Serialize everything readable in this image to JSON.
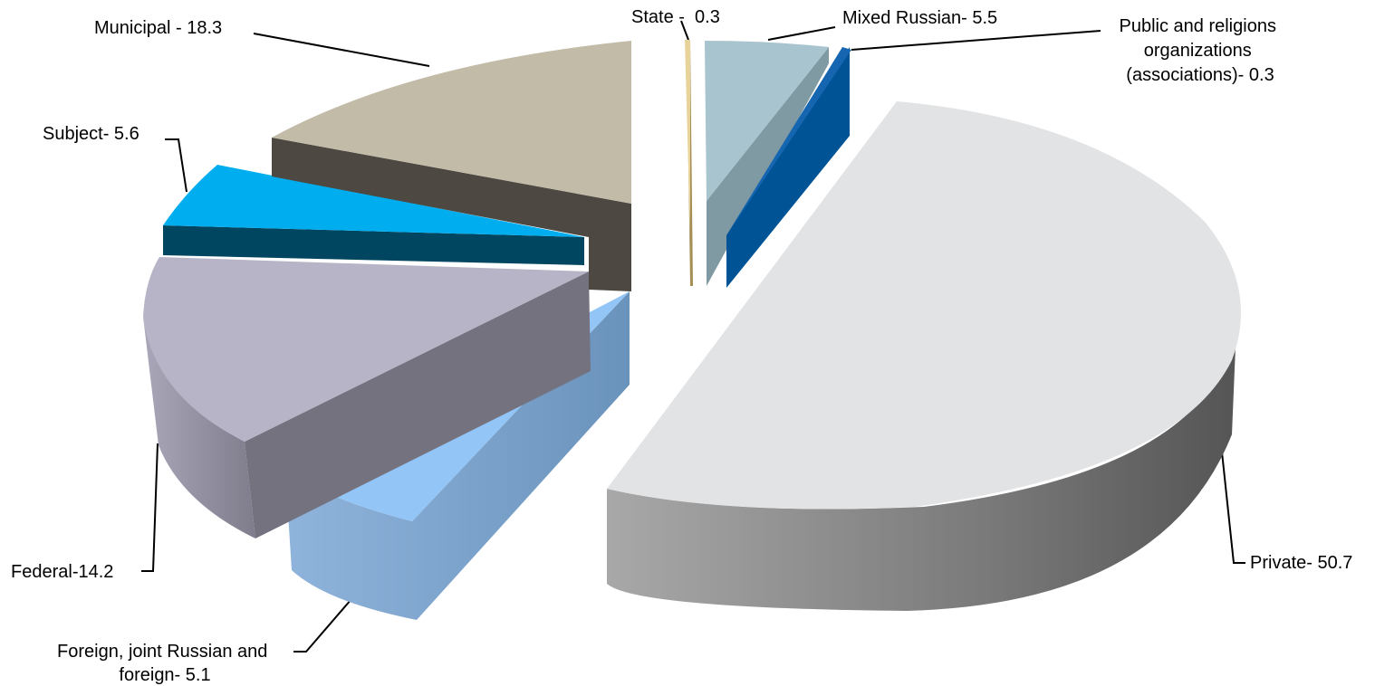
{
  "chart_data": {
    "type": "pie",
    "three_d": true,
    "exploded": true,
    "legend": "none",
    "unit": "",
    "slices": [
      {
        "label": "Private",
        "value": 50.7,
        "text": "Private- 50.7",
        "top_color": "#E2E3E5",
        "side_color": "#8A8A8A"
      },
      {
        "label": "Foreign, joint Russian and foreign",
        "value": 5.1,
        "text_lines": [
          "Foreign, joint Russian and",
          "foreign- 5.1"
        ],
        "top_color": "#93C5F7",
        "side_color": "#6E97BF"
      },
      {
        "label": "Federal",
        "value": 14.2,
        "text": "Federal-14.2",
        "top_color": "#B6B4C6",
        "side_color": "#74727F"
      },
      {
        "label": "Subject",
        "value": 5.6,
        "text": "Subject- 5.6",
        "top_color": "#00AEEF",
        "side_color": "#004660"
      },
      {
        "label": "Municipal",
        "value": 18.3,
        "text": "Municipal - 18.3",
        "top_color": "#C2BBA7",
        "side_color": "#4D4942"
      },
      {
        "label": "State",
        "value": 0.3,
        "text": "State -  0.3",
        "top_color": "#E8D49A",
        "side_color": "#A58F55"
      },
      {
        "label": "Mixed Russian",
        "value": 5.5,
        "text": "Mixed Russian- 5.5",
        "top_color": "#A8C4CE",
        "side_color": "#7F9AA3"
      },
      {
        "label": "Public and religions organizations (associations)",
        "value": 0.3,
        "text_lines": [
          "Public and religions",
          "organizations",
          "(associations)- 0.3"
        ],
        "top_color": "#005496",
        "side_color": "#003A68"
      }
    ]
  }
}
